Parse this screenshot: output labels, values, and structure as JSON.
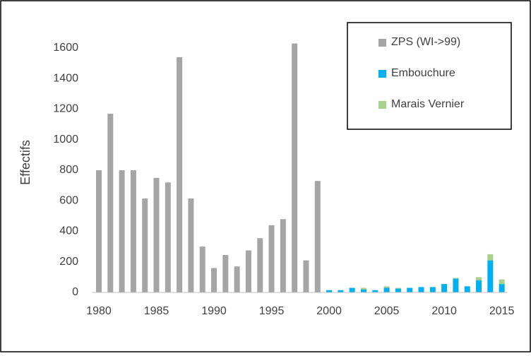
{
  "chart_data": {
    "type": "stacked-bar",
    "y_label": "Effectifs",
    "x": [
      1980,
      1981,
      1982,
      1983,
      1984,
      1985,
      1986,
      1987,
      1988,
      1989,
      1990,
      1991,
      1992,
      1993,
      1994,
      1995,
      1996,
      1997,
      1998,
      1999,
      2000,
      2001,
      2002,
      2003,
      2004,
      2005,
      2006,
      2007,
      2008,
      2009,
      2010,
      2011,
      2012,
      2013,
      2014,
      2015
    ],
    "series": [
      {
        "name": "ZPS (WI->99)",
        "color": "#a5a5a5",
        "values": [
          800,
          1170,
          800,
          800,
          615,
          750,
          720,
          1540,
          615,
          300,
          160,
          245,
          170,
          275,
          355,
          440,
          480,
          1630,
          210,
          730,
          null,
          null,
          null,
          null,
          null,
          null,
          null,
          null,
          null,
          null,
          null,
          null,
          null,
          null,
          null,
          null
        ]
      },
      {
        "name": "Embouchure",
        "color": "#00b0f0",
        "values": [
          null,
          null,
          null,
          null,
          null,
          null,
          null,
          null,
          null,
          null,
          null,
          null,
          null,
          null,
          null,
          null,
          null,
          null,
          null,
          null,
          15,
          15,
          30,
          20,
          15,
          30,
          25,
          30,
          35,
          35,
          55,
          90,
          40,
          80,
          210,
          55
        ]
      },
      {
        "name": "Marais Vernier",
        "color": "#a9d18e",
        "values": [
          null,
          null,
          null,
          null,
          null,
          null,
          null,
          null,
          null,
          null,
          null,
          null,
          null,
          null,
          null,
          null,
          null,
          null,
          null,
          null,
          0,
          0,
          0,
          10,
          0,
          10,
          5,
          0,
          0,
          0,
          0,
          5,
          0,
          20,
          40,
          30
        ]
      }
    ],
    "xlim": [
      1979.4,
      2015.5
    ],
    "xticks": [
      1980,
      1985,
      1990,
      1995,
      2000,
      2005,
      2010,
      2015
    ],
    "ylim": [
      0,
      1700
    ],
    "yticks": [
      0,
      200,
      400,
      600,
      800,
      1000,
      1200,
      1400,
      1600
    ],
    "legend": "top-right"
  }
}
